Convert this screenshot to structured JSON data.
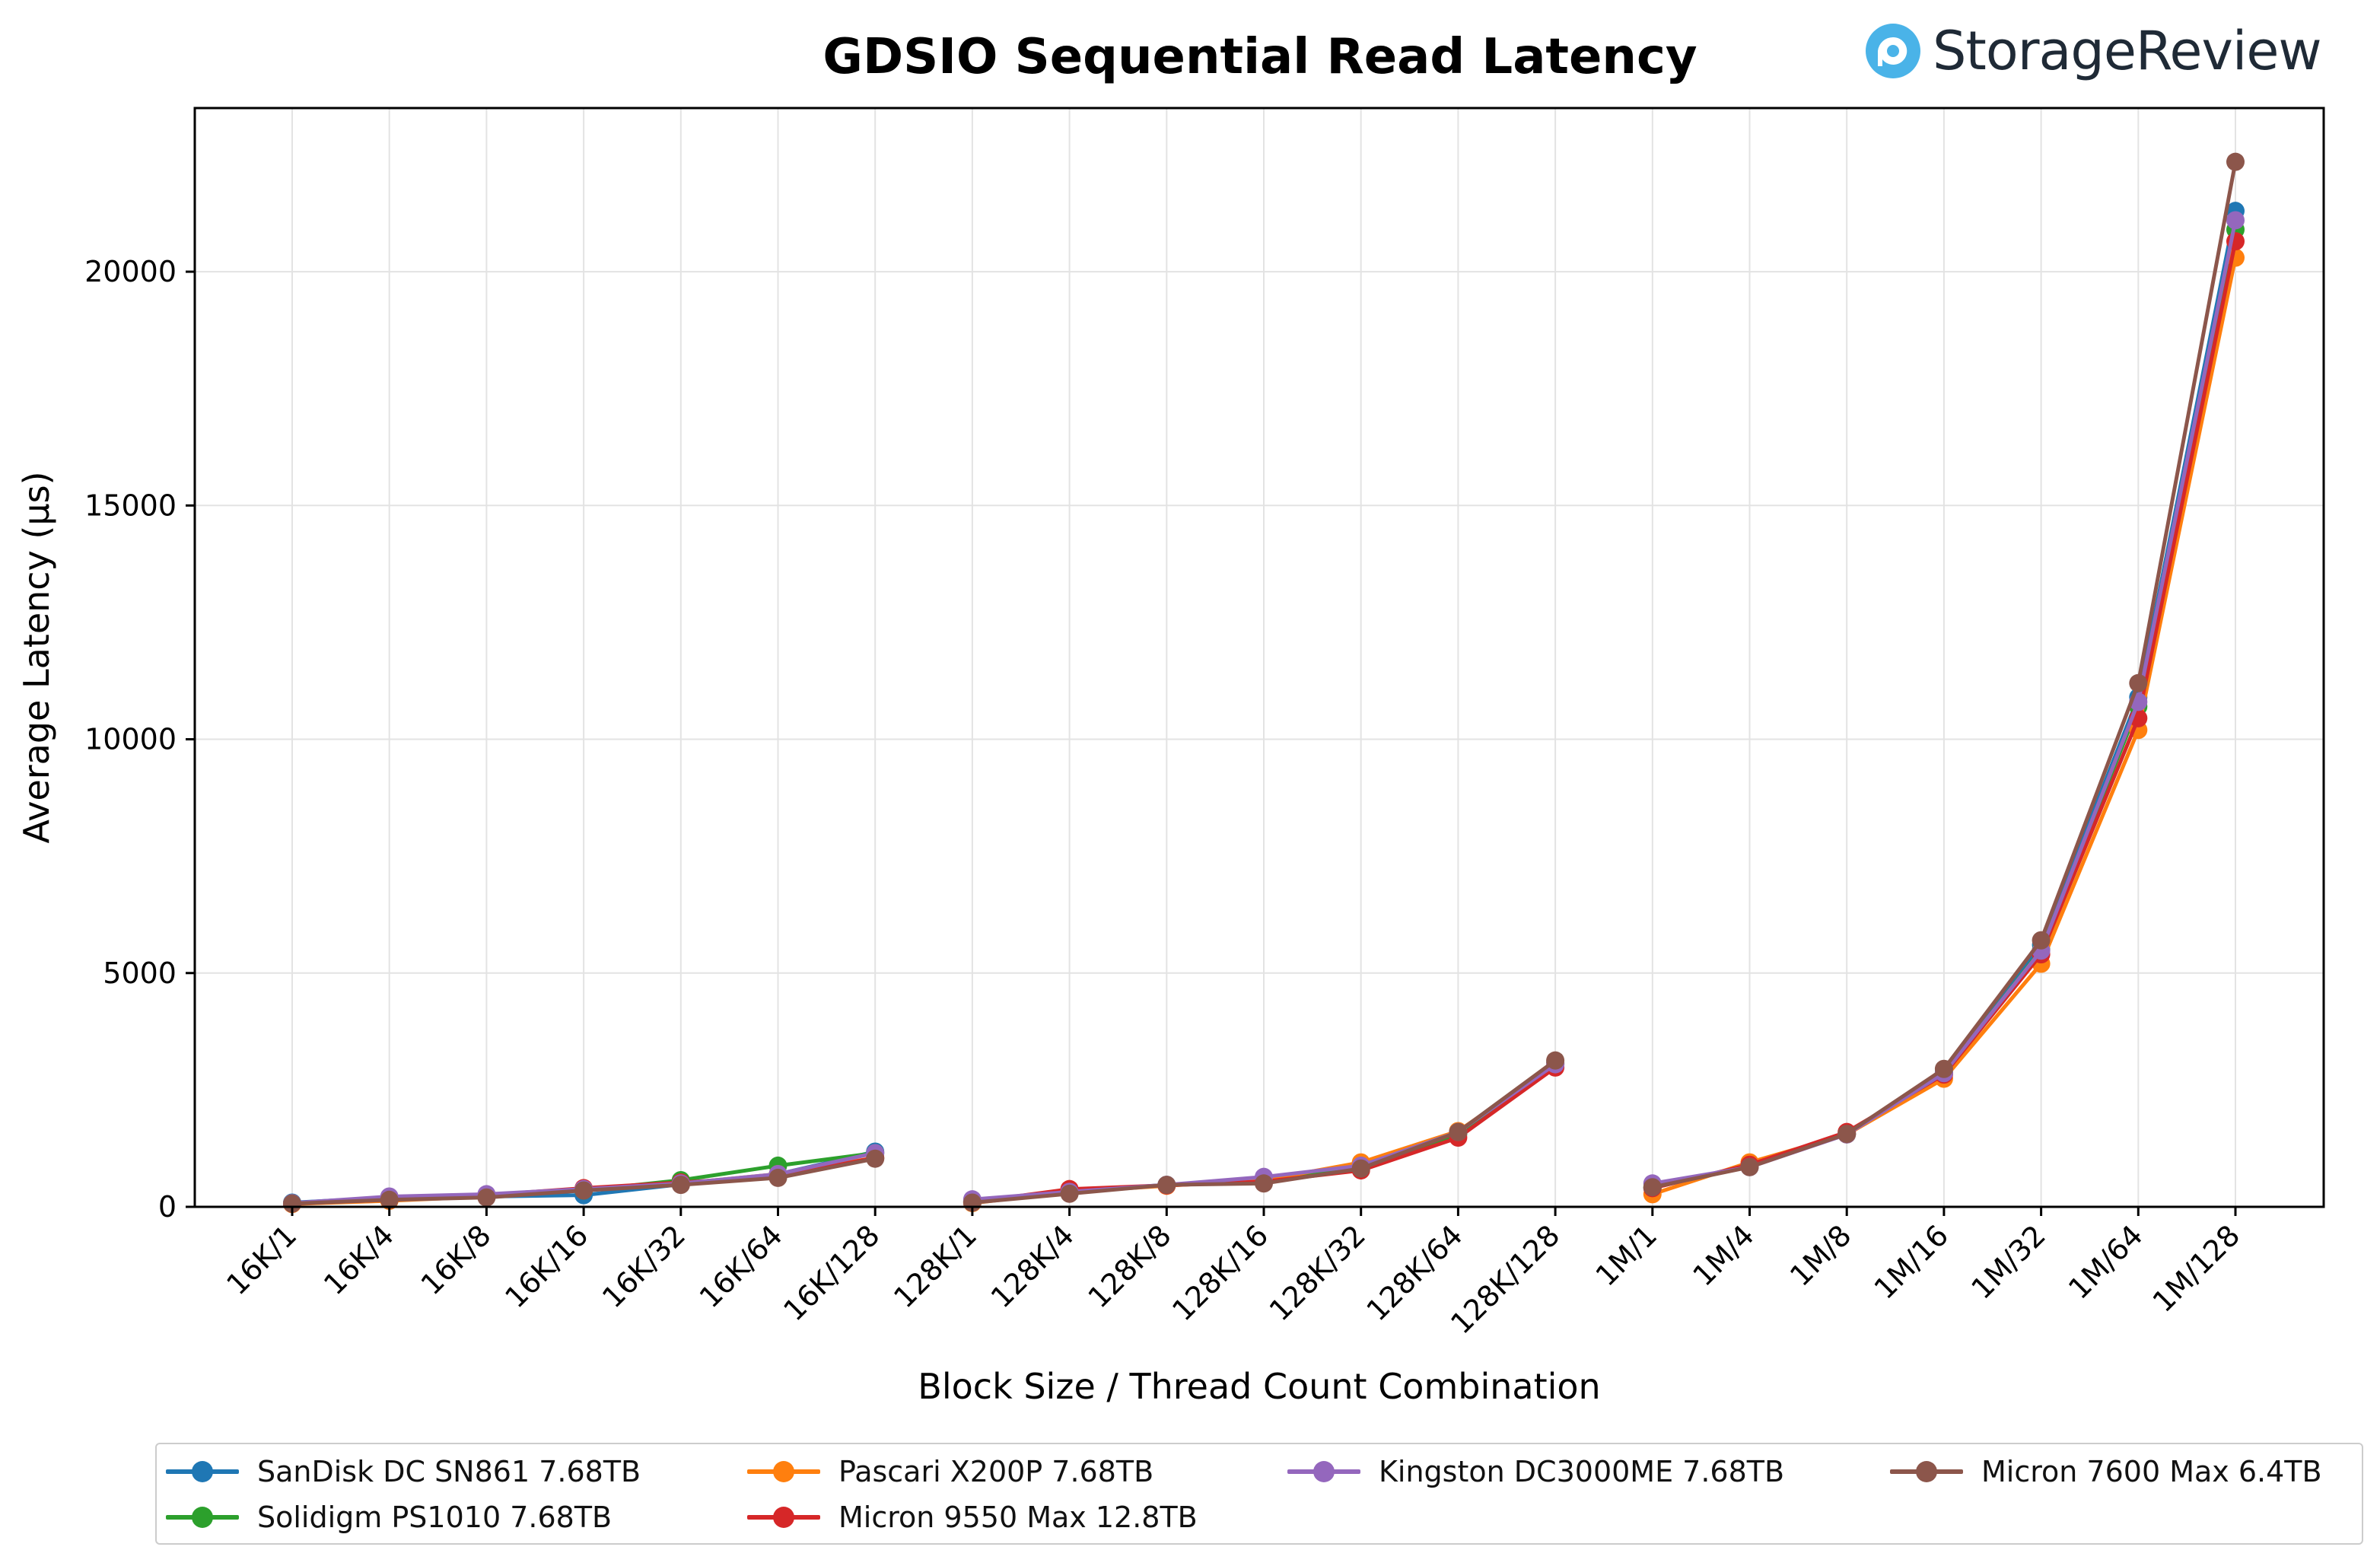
{
  "brand": {
    "name": "StorageReview",
    "icon": "storagereview-logo-icon",
    "accent": "#4ab3e8"
  },
  "chart_data": {
    "type": "line",
    "title": "GDSIO Sequential Read Latency",
    "xlabel": "Block Size / Thread Count Combination",
    "ylabel": "Average Latency (µs)",
    "ylim": [
      0,
      23500
    ],
    "yticks": [
      0,
      5000,
      10000,
      15000,
      20000
    ],
    "grid": true,
    "legend_position": "bottom",
    "categories": [
      "16K/1",
      "16K/4",
      "16K/8",
      "16K/16",
      "16K/32",
      "16K/64",
      "16K/128",
      "128K/1",
      "128K/4",
      "128K/8",
      "128K/16",
      "128K/32",
      "128K/64",
      "128K/128",
      "1M/1",
      "1M/4",
      "1M/8",
      "1M/16",
      "1M/32",
      "1M/64",
      "1M/128"
    ],
    "segments": [
      [
        0,
        6
      ],
      [
        7,
        13
      ],
      [
        14,
        20
      ]
    ],
    "series": [
      {
        "name": "SanDisk DC SN861 7.68TB",
        "color": "#1f77b4",
        "values": [
          90,
          200,
          220,
          250,
          480,
          700,
          1180,
          120,
          330,
          470,
          600,
          870,
          1580,
          3080,
          400,
          900,
          1560,
          2880,
          5600,
          10900,
          21300
        ]
      },
      {
        "name": "Solidigm PS1010 7.68TB",
        "color": "#2ca02c",
        "values": [
          80,
          150,
          230,
          350,
          570,
          880,
          1150,
          110,
          310,
          460,
          560,
          820,
          1560,
          3050,
          420,
          880,
          1550,
          2850,
          5500,
          10700,
          20900
        ]
      },
      {
        "name": "Pascari X200P 7.68TB",
        "color": "#ff7f0e",
        "values": [
          60,
          130,
          220,
          380,
          500,
          700,
          1050,
          80,
          320,
          450,
          570,
          950,
          1620,
          3050,
          270,
          950,
          1550,
          2740,
          5200,
          10200,
          20300
        ]
      },
      {
        "name": "Micron 9550 Max 12.8TB",
        "color": "#d62728",
        "values": [
          70,
          150,
          250,
          400,
          520,
          650,
          1050,
          100,
          380,
          460,
          540,
          780,
          1480,
          2980,
          400,
          900,
          1600,
          2830,
          5400,
          10450,
          20650
        ]
      },
      {
        "name": "Kingston DC3000ME 7.68TB",
        "color": "#9467bd",
        "values": [
          80,
          220,
          270,
          380,
          500,
          700,
          1150,
          160,
          320,
          470,
          640,
          880,
          1600,
          3050,
          500,
          850,
          1550,
          2860,
          5480,
          10800,
          21100
        ]
      },
      {
        "name": "Micron 7600 Max 6.4TB",
        "color": "#8c564b",
        "values": [
          70,
          150,
          200,
          350,
          470,
          620,
          1030,
          90,
          280,
          470,
          500,
          820,
          1600,
          3130,
          420,
          850,
          1560,
          2950,
          5700,
          11200,
          22350
        ]
      }
    ]
  }
}
